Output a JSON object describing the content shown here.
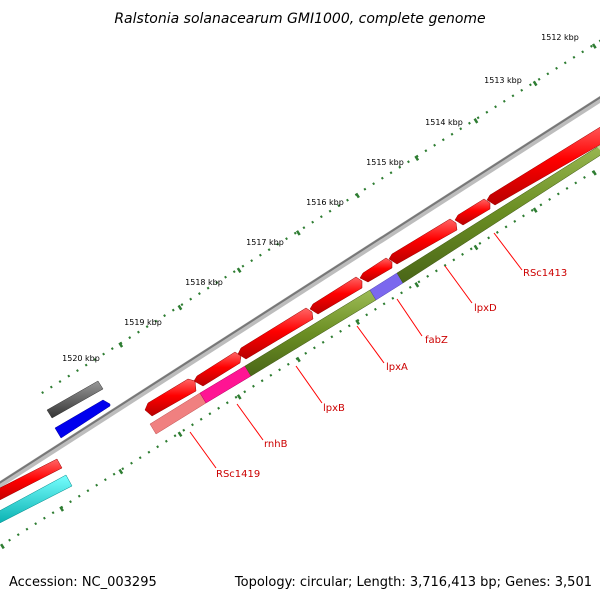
{
  "map": {
    "title": "Ralstonia solanacearum GMI1000, complete genome",
    "accession": "Accession: NC_003295",
    "summary": "Topology: circular; Length: 3,716,413 bp; Genes: 3,501"
  },
  "ticks": [
    {
      "label": "1512 kbp"
    },
    {
      "label": "1513 kbp"
    },
    {
      "label": "1514 kbp"
    },
    {
      "label": "1515 kbp"
    },
    {
      "label": "1516 kbp"
    },
    {
      "label": "1517 kbp"
    },
    {
      "label": "1518 kbp"
    },
    {
      "label": "1519 kbp"
    },
    {
      "label": "1520 kbp"
    }
  ],
  "genes": [
    {
      "label": "RSc1413"
    },
    {
      "label": "lpxD"
    },
    {
      "label": "fabZ"
    },
    {
      "label": "lpxA"
    },
    {
      "label": "lpxB"
    },
    {
      "label": "rnhB"
    },
    {
      "label": "RSc1419"
    }
  ],
  "colors": {
    "cds_forward": "#ff0000",
    "gene_track": "#6b8e23",
    "fabz_segment": "#7b68ee",
    "rnhb_segment": "#ff1493",
    "rsc1419_segment": "#f08080",
    "grey_feature": "#555555",
    "blue_feature": "#0000ee",
    "cyan_feature": "#00cccc",
    "backbone": "#888888",
    "tick": "#2e7d32",
    "label_line": "#ff0000"
  }
}
